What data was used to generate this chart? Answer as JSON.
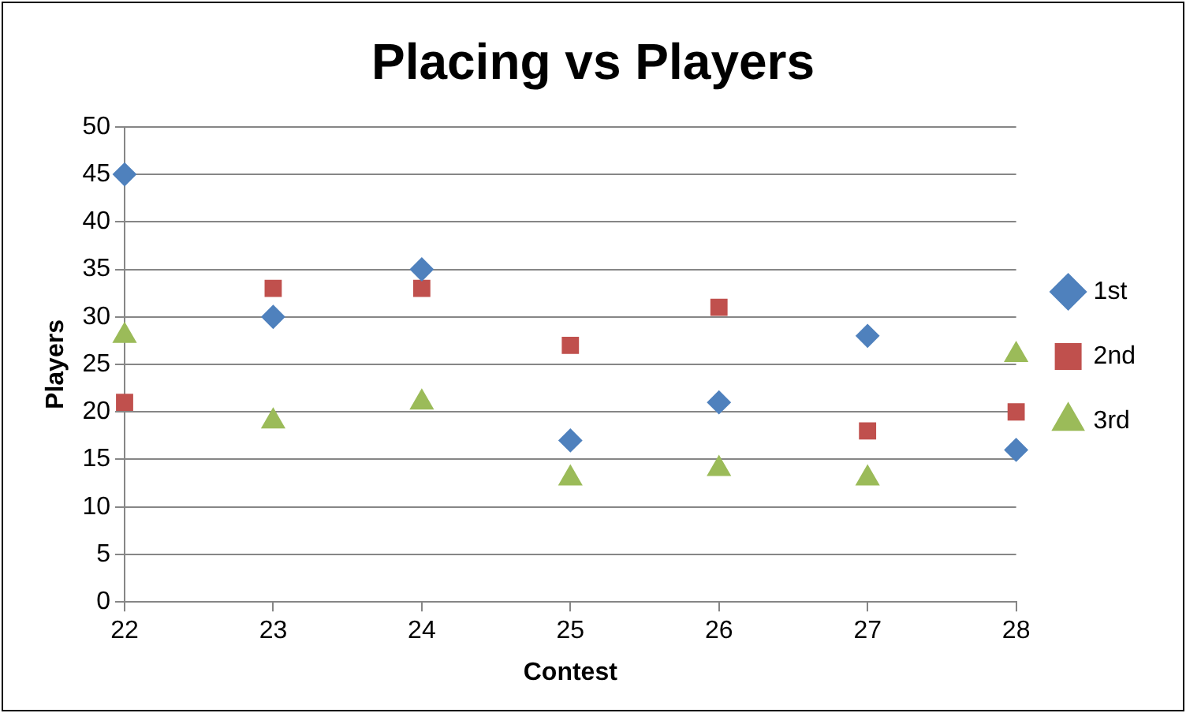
{
  "chart_data": {
    "type": "scatter",
    "title": "Placing vs Players",
    "xlabel": "Contest",
    "ylabel": "Players",
    "xlim": [
      22,
      28
    ],
    "xticks": [
      22,
      23,
      24,
      25,
      26,
      27,
      28
    ],
    "ylim": [
      0,
      50
    ],
    "yticks": [
      0,
      5,
      10,
      15,
      20,
      25,
      30,
      35,
      40,
      45,
      50
    ],
    "grid": "y",
    "legend": "right",
    "x": [
      22,
      23,
      24,
      25,
      26,
      27,
      28
    ],
    "series": [
      {
        "name": "1st",
        "color": "#4f81bd",
        "marker": "diamond",
        "values": [
          45,
          30,
          35,
          17,
          21,
          28,
          16
        ]
      },
      {
        "name": "2nd",
        "color": "#c0504d",
        "marker": "square",
        "values": [
          21,
          33,
          33,
          27,
          31,
          18,
          20
        ]
      },
      {
        "name": "3rd",
        "color": "#9bbb59",
        "marker": "triangle",
        "values": [
          28,
          19,
          21,
          13,
          14,
          13,
          26
        ]
      }
    ]
  }
}
